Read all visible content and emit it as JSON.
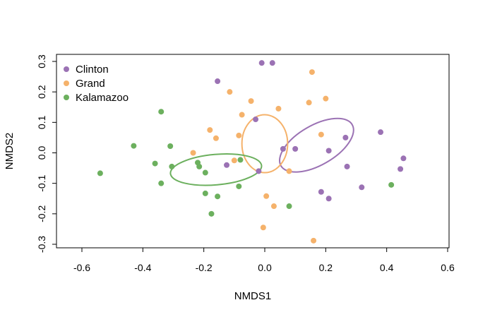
{
  "chart_data": {
    "type": "scatter",
    "xlabel": "NMDS1",
    "ylabel": "NMDS2",
    "xlim": [
      -0.6,
      0.6
    ],
    "ylim": [
      -0.3,
      0.3
    ],
    "xticks": [
      -0.6,
      -0.4,
      -0.2,
      0.0,
      0.2,
      0.4,
      0.6
    ],
    "yticks": [
      -0.3,
      -0.2,
      -0.1,
      0.0,
      0.1,
      0.2,
      0.3
    ],
    "xtick_labels": [
      "-0.6",
      "-0.4",
      "-0.2",
      "0.0",
      "0.2",
      "0.4",
      "0.6"
    ],
    "ytick_labels": [
      "-0.3",
      "-0.2",
      "-0.1",
      "0.0",
      "0.1",
      "0.2",
      "0.3"
    ],
    "legend_position": "top-left",
    "series": [
      {
        "name": "Clinton",
        "color": "#9b72b4",
        "points": [
          [
            -0.155,
            0.235
          ],
          [
            -0.01,
            0.295
          ],
          [
            0.025,
            0.295
          ],
          [
            -0.03,
            0.11
          ],
          [
            -0.125,
            -0.04
          ],
          [
            -0.02,
            -0.06
          ],
          [
            0.06,
            0.013
          ],
          [
            0.1,
            0.013
          ],
          [
            0.21,
            0.007
          ],
          [
            0.265,
            0.05
          ],
          [
            0.27,
            -0.045
          ],
          [
            0.38,
            0.068
          ],
          [
            0.455,
            -0.018
          ],
          [
            0.445,
            -0.053
          ],
          [
            0.318,
            -0.113
          ],
          [
            0.185,
            -0.128
          ],
          [
            0.21,
            -0.15
          ]
        ],
        "ellipse": {
          "cx": 0.17,
          "cy": 0.025,
          "rx": 0.135,
          "ry": 0.065,
          "angle": -30
        }
      },
      {
        "name": "Grand",
        "color": "#f5b26b",
        "points": [
          [
            0.155,
            0.265
          ],
          [
            -0.115,
            0.2
          ],
          [
            -0.045,
            0.17
          ],
          [
            0.045,
            0.145
          ],
          [
            0.145,
            0.165
          ],
          [
            0.2,
            0.178
          ],
          [
            -0.075,
            0.125
          ],
          [
            0.185,
            0.06
          ],
          [
            -0.18,
            0.075
          ],
          [
            -0.16,
            0.048
          ],
          [
            -0.085,
            0.057
          ],
          [
            -0.235,
            0.0
          ],
          [
            -0.1,
            -0.025
          ],
          [
            0.08,
            -0.06
          ],
          [
            0.005,
            -0.142
          ],
          [
            0.03,
            -0.175
          ],
          [
            -0.005,
            -0.245
          ],
          [
            0.16,
            -0.288
          ]
        ],
        "ellipse": {
          "cx": 0.0,
          "cy": 0.03,
          "rx": 0.075,
          "ry": 0.095,
          "angle": 0
        }
      },
      {
        "name": "Kalamazoo",
        "color": "#6cb05e",
        "points": [
          [
            -0.54,
            -0.067
          ],
          [
            -0.43,
            0.023
          ],
          [
            -0.36,
            -0.035
          ],
          [
            -0.34,
            0.135
          ],
          [
            -0.34,
            -0.1
          ],
          [
            -0.31,
            0.022
          ],
          [
            -0.305,
            -0.045
          ],
          [
            -0.22,
            -0.032
          ],
          [
            -0.215,
            -0.045
          ],
          [
            -0.195,
            -0.065
          ],
          [
            -0.195,
            -0.133
          ],
          [
            -0.155,
            -0.143
          ],
          [
            -0.175,
            -0.2
          ],
          [
            -0.085,
            -0.11
          ],
          [
            -0.08,
            -0.023
          ],
          [
            0.08,
            -0.175
          ],
          [
            0.415,
            -0.105
          ]
        ],
        "ellipse": {
          "cx": -0.16,
          "cy": -0.055,
          "rx": 0.15,
          "ry": 0.05,
          "angle": -5
        }
      }
    ]
  }
}
